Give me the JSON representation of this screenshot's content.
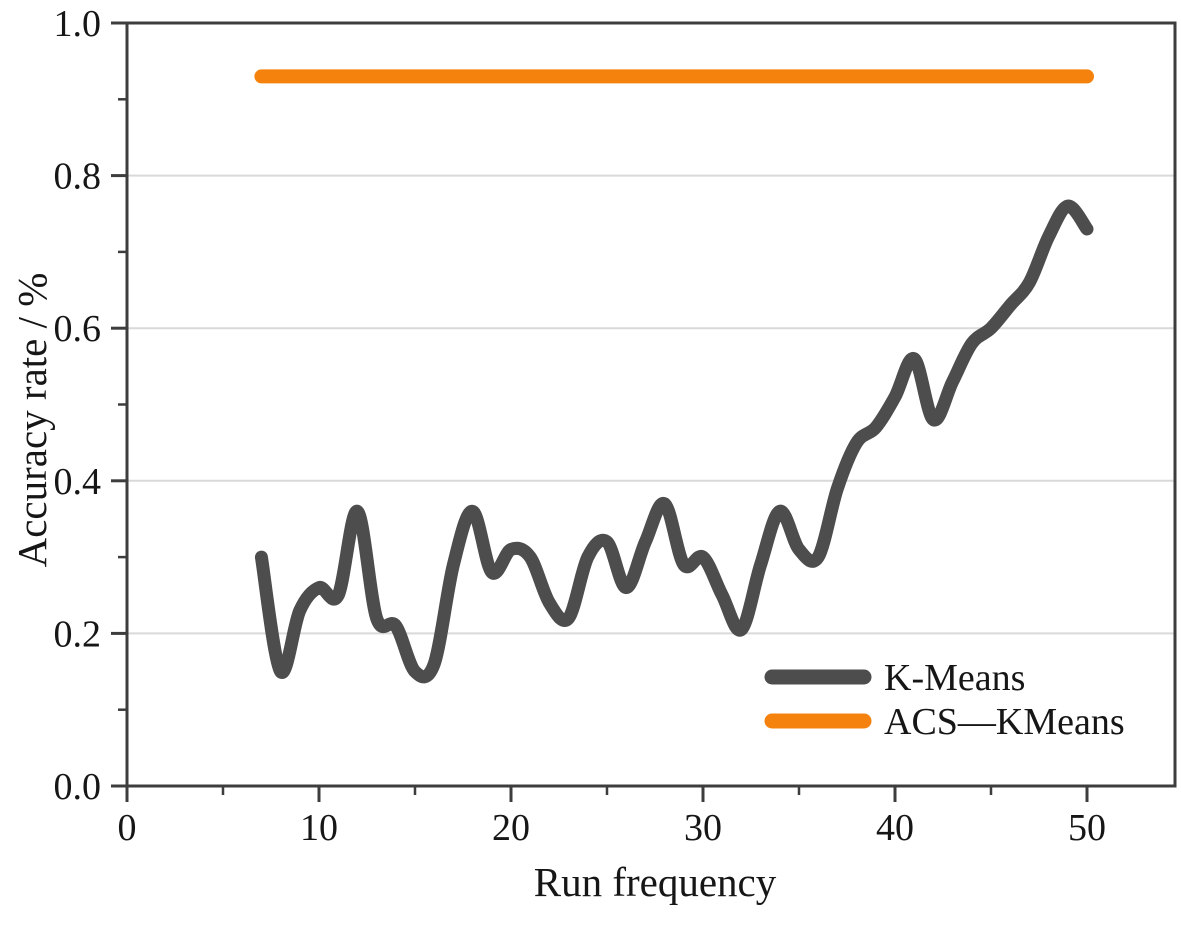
{
  "chart_data": {
    "type": "line",
    "title": "",
    "xlabel": "Run frequency",
    "ylabel": "Accuracy rate / %",
    "xlim": [
      0,
      54.6
    ],
    "ylim": [
      0.0,
      1.0
    ],
    "grid": {
      "y_values": [
        0.2,
        0.4,
        0.6,
        0.8
      ],
      "color": "#d9d9d9",
      "vertical": "off"
    },
    "frame": "full box",
    "frame_color": "#3d3d3d",
    "background_color": "#ffffff",
    "x_ticks": {
      "values": [
        0,
        10,
        20,
        30,
        40,
        50
      ],
      "labels": [
        "0",
        "10",
        "20",
        "30",
        "40",
        "50"
      ],
      "minor_values": [
        5,
        15,
        25,
        35,
        45
      ]
    },
    "y_ticks": {
      "values": [
        0.0,
        0.2,
        0.4,
        0.6,
        0.8,
        1.0
      ],
      "labels": [
        "0.0",
        "0.2",
        "0.4",
        "0.6",
        "0.8",
        "1.0"
      ],
      "minor_values": [
        0.1,
        0.3,
        0.5,
        0.7,
        0.9
      ]
    },
    "legend": {
      "position": "lower-right",
      "entries": [
        {
          "label": "K-Means",
          "color": "#4d4d4d"
        },
        {
          "label": "ACS—KMeans",
          "color": "#f5820d"
        }
      ]
    },
    "series": [
      {
        "name": "K-Means",
        "color": "#4d4d4d",
        "style": "smooth curve",
        "x": [
          7,
          8,
          9,
          10,
          11,
          12,
          13,
          14,
          15,
          16,
          17,
          18,
          19,
          20,
          21,
          22,
          23,
          24,
          25,
          26,
          27,
          28,
          29,
          30,
          31,
          32,
          33,
          34,
          35,
          36,
          37,
          38,
          39,
          40,
          41,
          42,
          43,
          44,
          45,
          46,
          47,
          48,
          49,
          50
        ],
        "y": [
          0.3,
          0.15,
          0.23,
          0.26,
          0.25,
          0.36,
          0.22,
          0.21,
          0.15,
          0.16,
          0.29,
          0.36,
          0.28,
          0.31,
          0.3,
          0.24,
          0.22,
          0.3,
          0.32,
          0.26,
          0.32,
          0.37,
          0.29,
          0.3,
          0.25,
          0.205,
          0.29,
          0.36,
          0.31,
          0.3,
          0.39,
          0.45,
          0.47,
          0.51,
          0.56,
          0.48,
          0.53,
          0.58,
          0.6,
          0.63,
          0.66,
          0.72,
          0.76,
          0.73
        ]
      },
      {
        "name": "ACS—KMeans",
        "color": "#f5820d",
        "style": "straight horizontal line",
        "x": [
          7,
          50
        ],
        "y": [
          0.93,
          0.93
        ]
      }
    ]
  }
}
